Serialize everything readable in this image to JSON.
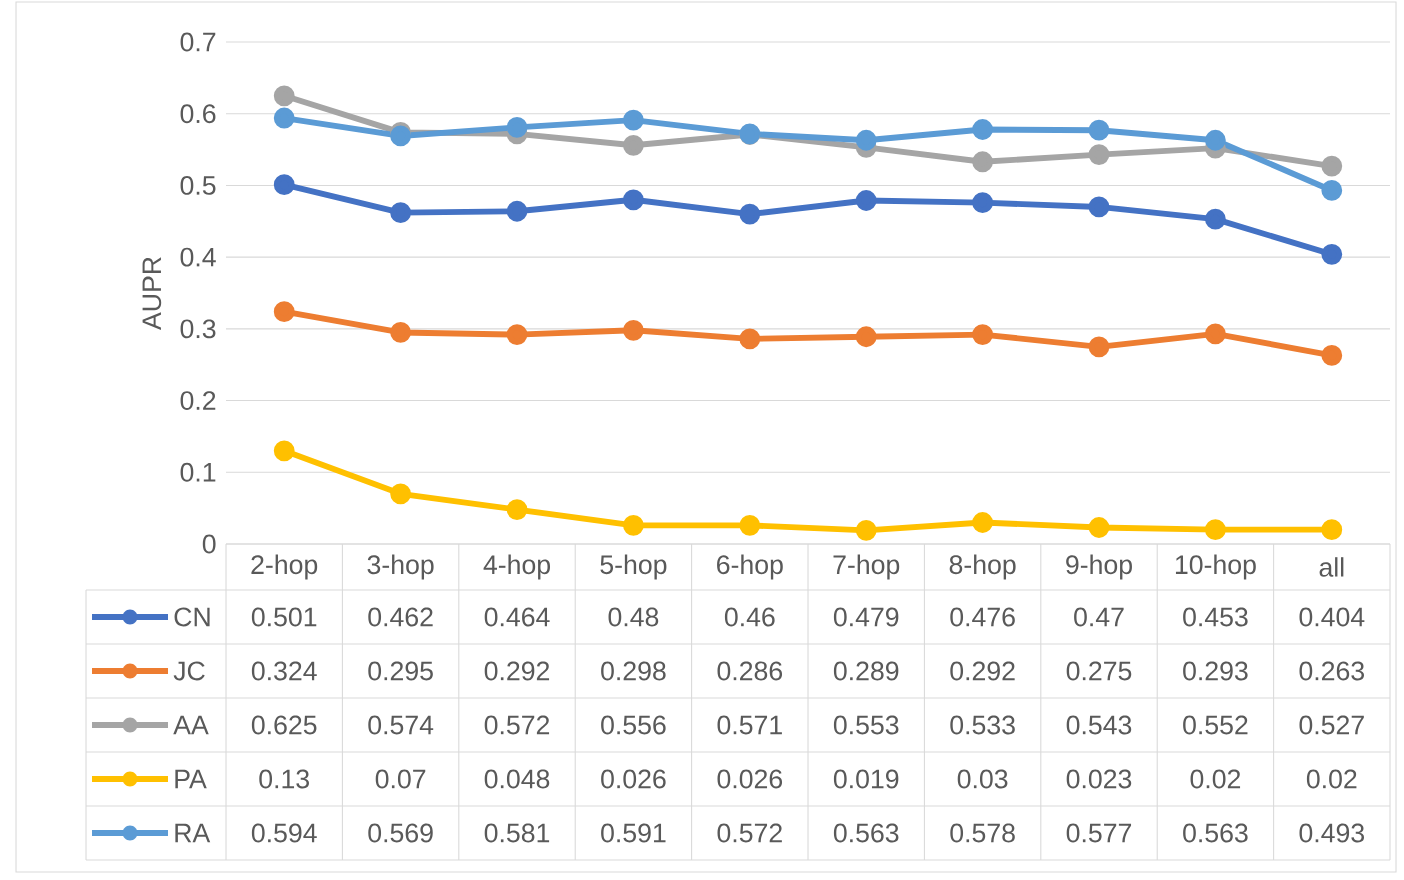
{
  "chart_data": {
    "type": "line",
    "ylabel": "AUPR",
    "categories": [
      "2-hop",
      "3-hop",
      "4-hop",
      "5-hop",
      "6-hop",
      "7-hop",
      "8-hop",
      "9-hop",
      "10-hop",
      "all"
    ],
    "series": [
      {
        "name": "CN",
        "color": "#4472c4",
        "values": [
          0.501,
          0.462,
          0.464,
          0.48,
          0.46,
          0.479,
          0.476,
          0.47,
          0.453,
          0.404
        ]
      },
      {
        "name": "JC",
        "color": "#ed7d31",
        "values": [
          0.324,
          0.295,
          0.292,
          0.298,
          0.286,
          0.289,
          0.292,
          0.275,
          0.293,
          0.263
        ]
      },
      {
        "name": "AA",
        "color": "#a5a5a5",
        "values": [
          0.625,
          0.574,
          0.572,
          0.556,
          0.571,
          0.553,
          0.533,
          0.543,
          0.552,
          0.527
        ]
      },
      {
        "name": "PA",
        "color": "#ffc000",
        "values": [
          0.13,
          0.07,
          0.048,
          0.026,
          0.026,
          0.019,
          0.03,
          0.023,
          0.02,
          0.02
        ]
      },
      {
        "name": "RA",
        "color": "#5b9bd5",
        "values": [
          0.594,
          0.569,
          0.581,
          0.591,
          0.572,
          0.563,
          0.578,
          0.577,
          0.563,
          0.493
        ]
      }
    ],
    "ylim": [
      0,
      0.7
    ],
    "yticks": [
      0,
      0.1,
      0.2,
      0.3,
      0.4,
      0.5,
      0.6,
      0.7
    ],
    "grid": "y",
    "legend": "bottom left",
    "marker": "circle",
    "line_style": "solid",
    "data_labels": true
  }
}
